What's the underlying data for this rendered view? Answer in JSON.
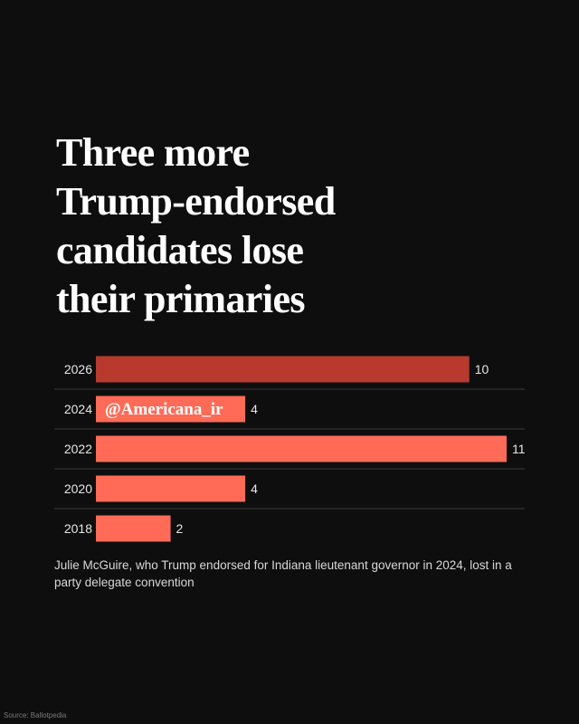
{
  "title_lines": [
    "Three more",
    "Trump-endorsed",
    "candidates lose",
    "their primaries"
  ],
  "colors": {
    "background": "#0e0e0e",
    "highlight": "#b83a2e",
    "bar": "#ff6b57",
    "divider": "#3a3a3a",
    "text": "#ffffff"
  },
  "chart_data": {
    "type": "bar",
    "orientation": "horizontal",
    "categories": [
      "2026",
      "2024",
      "2022",
      "2020",
      "2018"
    ],
    "values": [
      10,
      4,
      11,
      4,
      2
    ],
    "highlight_category": "2026",
    "xlim": [
      0,
      11
    ],
    "title": "Three more Trump-endorsed candidates lose their primaries",
    "xlabel": "",
    "ylabel": ""
  },
  "watermark": "@Americana_ir",
  "note": "Julie McGuire, who Trump endorsed for Indiana lieutenant governor in 2024, lost in a party delegate convention",
  "source": "Source: Ballotpedia"
}
